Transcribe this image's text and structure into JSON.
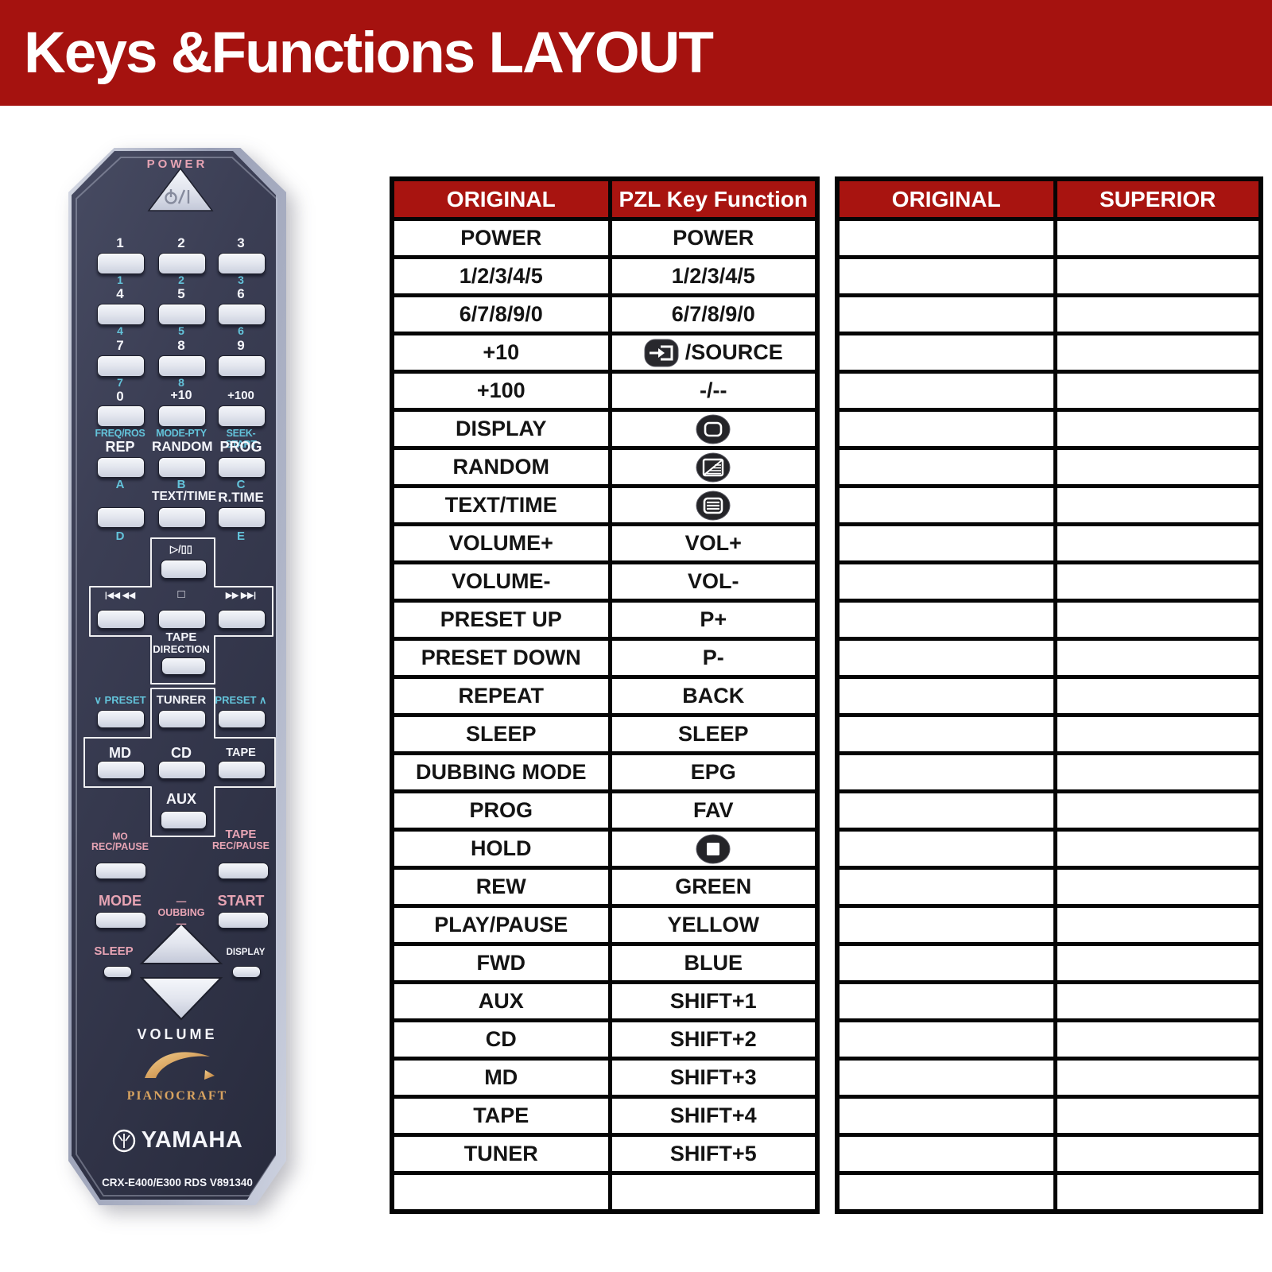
{
  "banner": {
    "title": "Keys &Functions LAYOUT"
  },
  "colors": {
    "banner_red": "#A5120F",
    "table_header_red": "#A81410",
    "remote_body_dark": "#34374C",
    "remote_cyan": "#63C3DA",
    "remote_pink": "#E7A4B4",
    "logo_gold": "#D8A360"
  },
  "icons": {
    "power_button": "power-standby-icon",
    "source_row": "source-input-icon",
    "display_row": "display-frame-icon",
    "random_row": "random-mosaic-icon",
    "text_row": "text-lines-icon",
    "hold_row": "stop-square-icon",
    "pianocraft": "grand-piano-logo",
    "yamaha": "tuning-forks-logo"
  },
  "remote": {
    "power_label": "POWER",
    "keypad": {
      "rows": [
        {
          "white": [
            "1",
            "2",
            "3"
          ],
          "cyan": [
            "1",
            "2",
            "3"
          ]
        },
        {
          "white": [
            "4",
            "5",
            "6"
          ],
          "cyan": [
            "4",
            "5",
            "6"
          ]
        },
        {
          "white": [
            "7",
            "8",
            "9"
          ],
          "cyan": [
            "7",
            "8",
            ""
          ]
        },
        {
          "white": [
            "0",
            "+10",
            "+100"
          ],
          "cyan": [
            "",
            "",
            ""
          ]
        }
      ]
    },
    "fn_cyan": [
      "FREQ/ROS",
      "MODE-PTY",
      "SEEK-START"
    ],
    "fn_white": [
      "REP",
      "RANDOM",
      "PROG"
    ],
    "abc": [
      "A",
      "B",
      "C"
    ],
    "time_white": [
      "TEXT/TIME",
      "R.TIME"
    ],
    "de": [
      "D",
      "E"
    ],
    "transport": {
      "play": "▷/▯▯",
      "rew": "|◀◀ ◀◀",
      "stop": "□",
      "fwd": "▶▶ ▶▶|",
      "tape": [
        "TAPE",
        "DIRECTION"
      ]
    },
    "preset": {
      "left": "∨ PRESET",
      "mid": "TUNRER",
      "right": "PRESET ∧"
    },
    "src": [
      "MD",
      "CD",
      "TAPE"
    ],
    "aux": "AUX",
    "rec_l": [
      "MO",
      "REC/PAUSE"
    ],
    "rec_r": [
      "TAPE",
      "REC/PAUSE"
    ],
    "dub": [
      "MODE",
      "— OUBBING —",
      "START"
    ],
    "sleep": "SLEEP",
    "display_label": "DISPLAY",
    "volume": "VOLUME",
    "sub_brand": "PIANOCRAFT",
    "brand": "YAMAHA",
    "model": "CRX-E400/E300 RDS V891340"
  },
  "table1": {
    "headers": [
      "ORIGINAL",
      "PZL Key Function"
    ],
    "rows": [
      [
        "POWER",
        "POWER"
      ],
      [
        "1/2/3/4/5",
        "1/2/3/4/5"
      ],
      [
        "6/7/8/9/0",
        "6/7/8/9/0"
      ],
      [
        "+10",
        {
          "icon": "source-input-icon",
          "text": "/SOURCE"
        }
      ],
      [
        "+100",
        "-/--"
      ],
      [
        "DISPLAY",
        {
          "icon": "display-frame-icon"
        }
      ],
      [
        "RANDOM",
        {
          "icon": "random-mosaic-icon"
        }
      ],
      [
        "TEXT/TIME",
        {
          "icon": "text-lines-icon"
        }
      ],
      [
        "VOLUME+",
        "VOL+"
      ],
      [
        "VOLUME-",
        "VOL-"
      ],
      [
        "PRESET UP",
        "P+"
      ],
      [
        "PRESET DOWN",
        "P-"
      ],
      [
        "REPEAT",
        "BACK"
      ],
      [
        "SLEEP",
        "SLEEP"
      ],
      [
        "DUBBING MODE",
        "EPG"
      ],
      [
        "PROG",
        "FAV"
      ],
      [
        "HOLD",
        {
          "icon": "stop-square-icon"
        }
      ],
      [
        "REW",
        "GREEN"
      ],
      [
        "PLAY/PAUSE",
        "YELLOW"
      ],
      [
        "FWD",
        "BLUE"
      ],
      [
        "AUX",
        "SHIFT+1"
      ],
      [
        "CD",
        "SHIFT+2"
      ],
      [
        "MD",
        "SHIFT+3"
      ],
      [
        "TAPE",
        "SHIFT+4"
      ],
      [
        "TUNER",
        "SHIFT+5"
      ],
      [
        "",
        ""
      ]
    ]
  },
  "table2": {
    "headers": [
      "ORIGINAL",
      "SUPERIOR"
    ],
    "empty_rows": 26
  }
}
